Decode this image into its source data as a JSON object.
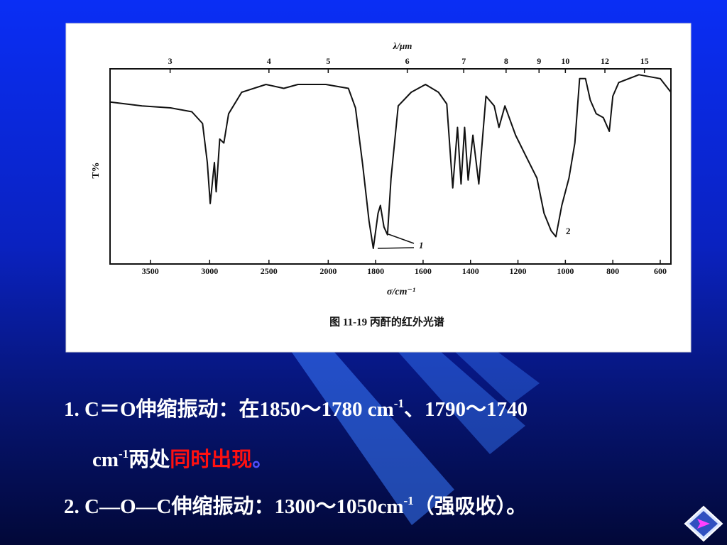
{
  "chart_data": {
    "type": "line",
    "title": "图 11-19   丙酐的红外光谱",
    "xlabel": "σ/cm⁻¹",
    "ylabel": "T%",
    "x2label": "λ/μm",
    "x": [
      3840,
      3570,
      3330,
      3150,
      3060,
      3020,
      2995,
      2960,
      2945,
      2915,
      2880,
      2840,
      2730,
      2525,
      2375,
      2255,
      2020,
      1915,
      1885,
      1855,
      1828,
      1810,
      1790,
      1780,
      1765,
      1750,
      1735,
      1705,
      1650,
      1590,
      1535,
      1500,
      1475,
      1455,
      1440,
      1425,
      1410,
      1390,
      1365,
      1335,
      1300,
      1280,
      1255,
      1210,
      1165,
      1120,
      1090,
      1060,
      1040,
      1015,
      985,
      960,
      940,
      915,
      895,
      870,
      840,
      815,
      800,
      775,
      690,
      600,
      555
    ],
    "values": [
      83,
      81,
      80,
      78,
      72,
      52,
      31,
      52,
      37,
      64,
      62,
      77,
      88,
      92,
      90,
      92,
      92,
      90,
      80,
      51,
      22,
      8,
      26,
      30,
      19,
      15,
      44,
      81,
      88,
      92,
      88,
      82,
      39,
      70,
      41,
      70,
      43,
      66,
      41,
      86,
      81,
      70,
      81,
      66,
      55,
      44,
      26,
      17,
      14,
      30,
      44,
      62,
      95,
      95,
      84,
      77,
      75,
      68,
      86,
      93,
      97,
      95,
      88
    ],
    "color": "#111111",
    "xlim": [
      3840,
      555
    ],
    "xticks": [
      3500,
      3000,
      2500,
      2000,
      1800,
      1600,
      1400,
      1200,
      1000,
      800,
      600
    ],
    "x2ticks": [
      3,
      4,
      5,
      6,
      7,
      8,
      9,
      10,
      12,
      15
    ],
    "ylim": [
      0,
      100
    ],
    "annotations": [
      "1",
      "2"
    ]
  },
  "body": [
    {
      "runs": [
        {
          "text": "1. C＝O伸缩振动：在1850～1780 cm"
        },
        {
          "text": "-1",
          "sup": true
        },
        {
          "text": "、1790～1740"
        }
      ]
    },
    {
      "runs": [
        {
          "text": "cm"
        },
        {
          "text": "-1",
          "sup": true
        },
        {
          "text": "两处"
        },
        {
          "text": "同时出现",
          "color": "#ff1010"
        },
        {
          "text": "。",
          "color": "#5050ff"
        }
      ]
    },
    {
      "runs": [
        {
          "text": "2. C—O—C伸缩振动：1300～1050cm"
        },
        {
          "text": "-1",
          "sup": true
        },
        {
          "text": "（强吸收）。"
        }
      ]
    }
  ]
}
